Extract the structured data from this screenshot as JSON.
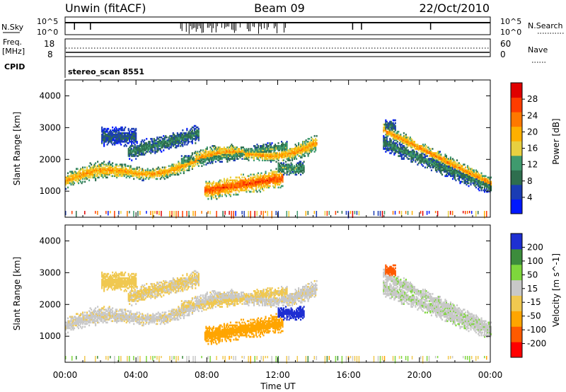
{
  "header": {
    "station": "Unwin (fitACF)",
    "beam": "Beam 09",
    "date": "22/Oct/2010"
  },
  "status_panels": {
    "nsky_label": "N.Sky",
    "nsky_ticks": [
      "10^5",
      "10^0"
    ],
    "nsearch_label": "N.Search",
    "nsearch_ticks": [
      "10^5",
      "10^0"
    ],
    "freq_label": "Freq.",
    "freq_unit": "[MHz]",
    "freq_ticks": [
      "18",
      "8"
    ],
    "nave_label": "Nave",
    "nave_ticks": [
      "60",
      "0"
    ],
    "cpid_label": "CPID",
    "cpid_value": "stereo_scan 8551"
  },
  "chart_data": [
    {
      "type": "heatmap",
      "quantity": "Power",
      "ylabel": "Slant Range [km]",
      "ylim": [
        180,
        4500
      ],
      "yticks": [
        1000,
        2000,
        3000,
        4000
      ],
      "xlim_hours": [
        0,
        24
      ],
      "colorbar": {
        "label": "Power [dB]",
        "ticks": [
          "28",
          "24",
          "20",
          "16",
          "12",
          "8",
          "4"
        ],
        "range": [
          0,
          30
        ],
        "colors": [
          "#0018ff",
          "#1a3cb4",
          "#2e6e4e",
          "#3f9a6e",
          "#e8d040",
          "#ffb000",
          "#ff7800",
          "#ff3c00",
          "#e00000"
        ]
      }
    },
    {
      "type": "heatmap",
      "quantity": "Velocity",
      "ylabel": "Slant Range [km]",
      "ylim": [
        180,
        4500
      ],
      "yticks": [
        1000,
        2000,
        3000,
        4000
      ],
      "xlim_hours": [
        0,
        24
      ],
      "xlabel": "Time UT",
      "xticks": [
        "00:00",
        "04:00",
        "08:00",
        "12:00",
        "16:00",
        "20:00",
        "00:00"
      ],
      "colorbar": {
        "label": "Velocity [m s^-1]",
        "ticks": [
          "200",
          "100",
          "50",
          "15",
          "-15",
          "-50",
          "-100",
          "-200"
        ],
        "range": [
          -250,
          250
        ],
        "colors": [
          "#ff0000",
          "#ff5a00",
          "#ffa500",
          "#f0c850",
          "#c8c8c8",
          "#7ed63c",
          "#3c8c3c",
          "#1e2fd2"
        ]
      }
    }
  ]
}
